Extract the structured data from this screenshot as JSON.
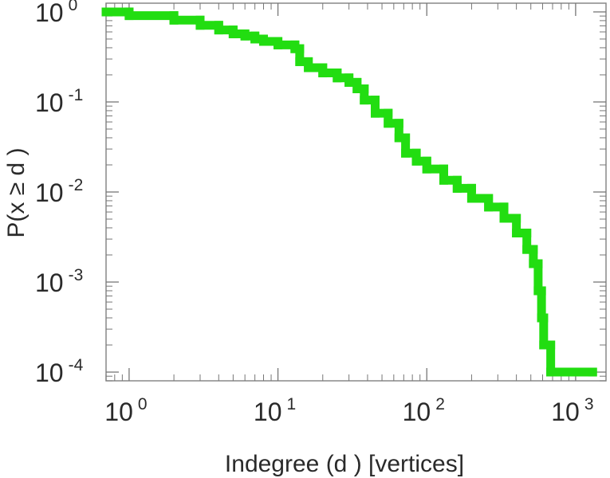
{
  "chart_data": {
    "type": "line",
    "xscale": "log",
    "yscale": "log",
    "xlim": [
      0.7,
      1600
    ],
    "ylim": [
      8e-05,
      1.25
    ],
    "xlabel": "Indegree (d ) [vertices]",
    "ylabel": "P(x ≥ d )",
    "x_tick_labels": [
      {
        "base": "10",
        "exp": "0",
        "value": 1
      },
      {
        "base": "10",
        "exp": "1",
        "value": 10
      },
      {
        "base": "10",
        "exp": "2",
        "value": 100
      },
      {
        "base": "10",
        "exp": "3",
        "value": 1000
      }
    ],
    "y_tick_labels": [
      {
        "base": "10",
        "exp": "0",
        "value": 1
      },
      {
        "base": "10",
        "exp": "-1",
        "value": 0.1
      },
      {
        "base": "10",
        "exp": "-2",
        "value": 0.01
      },
      {
        "base": "10",
        "exp": "-3",
        "value": 0.001
      },
      {
        "base": "10",
        "exp": "-4",
        "value": 0.0001
      }
    ],
    "grid": false,
    "series": [
      {
        "color": "#22dd11",
        "step": true,
        "points": [
          [
            0.7,
            1.0
          ],
          [
            1.0,
            0.91
          ],
          [
            2.0,
            0.81
          ],
          [
            3.0,
            0.71
          ],
          [
            4.0,
            0.63
          ],
          [
            5.0,
            0.57
          ],
          [
            6.0,
            0.54
          ],
          [
            7.0,
            0.5
          ],
          [
            8.0,
            0.47
          ],
          [
            10.0,
            0.43
          ],
          [
            13.0,
            0.39
          ],
          [
            14.0,
            0.28
          ],
          [
            16.0,
            0.24
          ],
          [
            20.0,
            0.21
          ],
          [
            25.0,
            0.185
          ],
          [
            30.0,
            0.165
          ],
          [
            34.0,
            0.14
          ],
          [
            38.0,
            0.105
          ],
          [
            45.0,
            0.075
          ],
          [
            55.0,
            0.058
          ],
          [
            65.0,
            0.04
          ],
          [
            72.0,
            0.027
          ],
          [
            85.0,
            0.022
          ],
          [
            100.0,
            0.018
          ],
          [
            130.0,
            0.0135
          ],
          [
            160.0,
            0.011
          ],
          [
            200.0,
            0.0085
          ],
          [
            260.0,
            0.0068
          ],
          [
            330.0,
            0.0051
          ],
          [
            400.0,
            0.0035
          ],
          [
            470.0,
            0.0023
          ],
          [
            520.0,
            0.0016
          ],
          [
            560.0,
            0.0008
          ],
          [
            590.0,
            0.0004
          ],
          [
            610.0,
            0.0002
          ],
          [
            680.0,
            0.0001
          ],
          [
            1300.0,
            0.0001
          ]
        ]
      }
    ]
  }
}
